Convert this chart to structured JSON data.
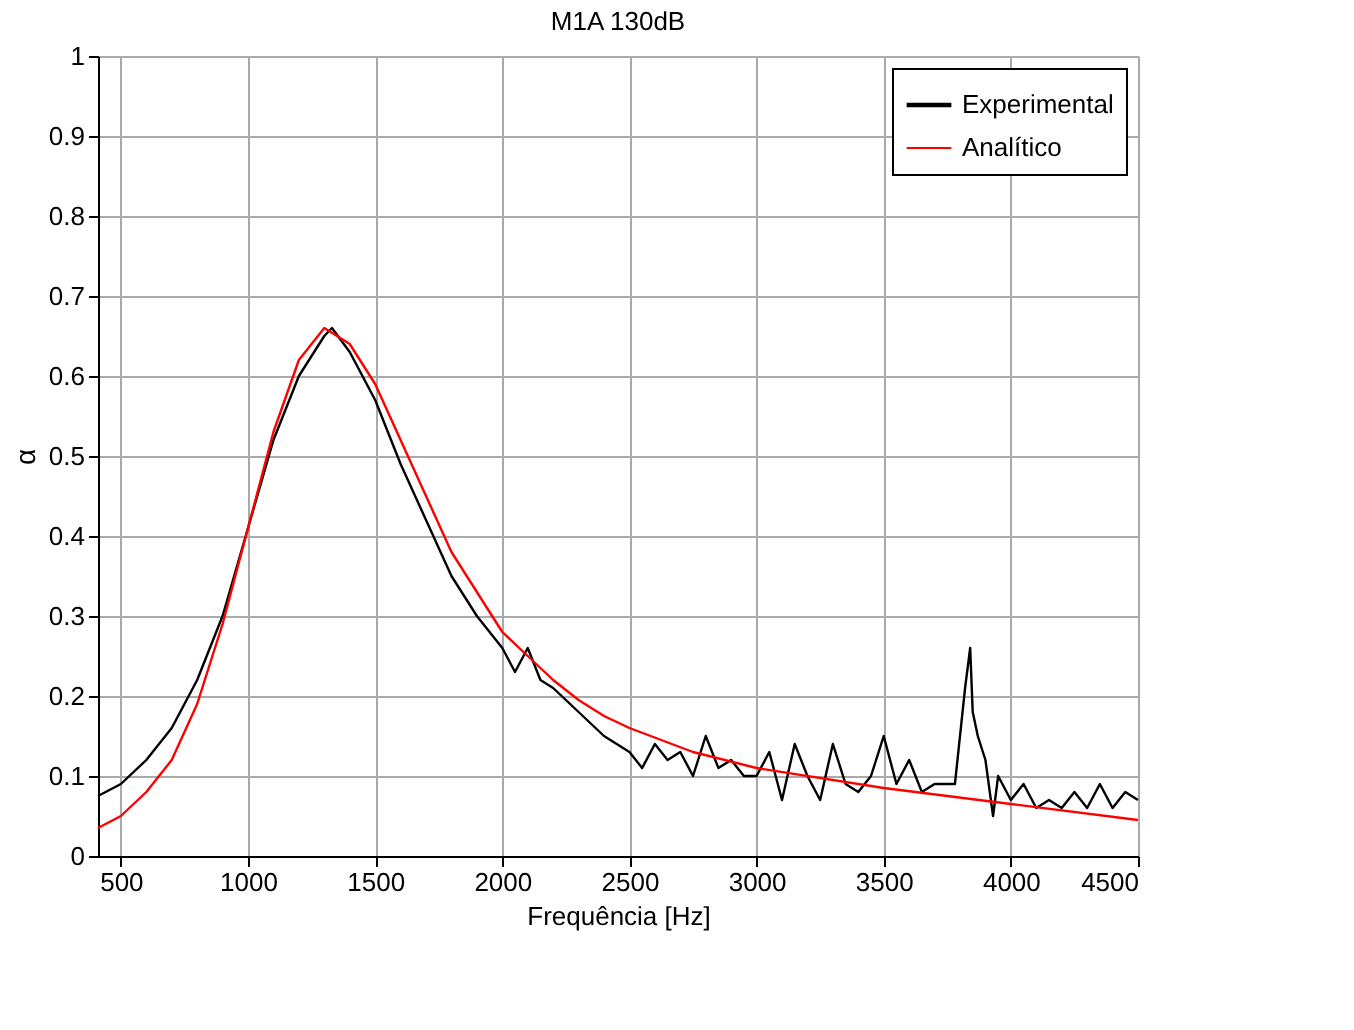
{
  "chart_data": {
    "type": "line",
    "title": "M1A 130dB",
    "xlabel": "Frequência [Hz]",
    "ylabel": "α",
    "xlim": [
      410,
      4500
    ],
    "xticks": [
      500,
      1000,
      1500,
      2000,
      2500,
      3000,
      3500,
      4000,
      4500
    ],
    "ylim": [
      0,
      1
    ],
    "yticks": [
      0,
      0.1,
      0.2,
      0.3,
      0.4,
      0.5,
      0.6,
      0.7,
      0.8,
      0.9,
      1
    ],
    "grid": true,
    "legend": "top right",
    "line_style": "solid",
    "series": [
      {
        "name": "Experimental",
        "color": "#000000",
        "x": [
          410,
          500,
          600,
          700,
          800,
          900,
          1000,
          1100,
          1200,
          1300,
          1330,
          1400,
          1500,
          1600,
          1700,
          1800,
          1900,
          2000,
          2050,
          2100,
          2150,
          2200,
          2300,
          2400,
          2500,
          2550,
          2600,
          2650,
          2700,
          2750,
          2800,
          2850,
          2900,
          2950,
          3000,
          3050,
          3100,
          3150,
          3200,
          3250,
          3300,
          3350,
          3400,
          3450,
          3500,
          3550,
          3600,
          3650,
          3700,
          3780,
          3820,
          3840,
          3850,
          3870,
          3900,
          3930,
          3950,
          4000,
          4050,
          4100,
          4150,
          4200,
          4250,
          4300,
          4350,
          4400,
          4450,
          4500
        ],
        "values": [
          0.075,
          0.09,
          0.12,
          0.16,
          0.22,
          0.3,
          0.41,
          0.52,
          0.6,
          0.65,
          0.66,
          0.63,
          0.57,
          0.49,
          0.42,
          0.35,
          0.3,
          0.26,
          0.23,
          0.26,
          0.22,
          0.21,
          0.18,
          0.15,
          0.13,
          0.11,
          0.14,
          0.12,
          0.13,
          0.1,
          0.15,
          0.11,
          0.12,
          0.1,
          0.1,
          0.13,
          0.07,
          0.14,
          0.1,
          0.07,
          0.14,
          0.09,
          0.08,
          0.1,
          0.15,
          0.09,
          0.12,
          0.08,
          0.09,
          0.09,
          0.21,
          0.26,
          0.18,
          0.15,
          0.12,
          0.05,
          0.1,
          0.07,
          0.09,
          0.06,
          0.07,
          0.06,
          0.08,
          0.06,
          0.09,
          0.06,
          0.08,
          0.07
        ]
      },
      {
        "name": "Analítico",
        "color": "#ff0000",
        "x": [
          410,
          500,
          600,
          700,
          800,
          900,
          1000,
          1100,
          1200,
          1300,
          1400,
          1500,
          1600,
          1700,
          1800,
          1900,
          2000,
          2100,
          2200,
          2300,
          2400,
          2500,
          2750,
          3000,
          3500,
          4000,
          4500
        ],
        "values": [
          0.035,
          0.05,
          0.08,
          0.12,
          0.19,
          0.29,
          0.41,
          0.53,
          0.62,
          0.66,
          0.64,
          0.59,
          0.52,
          0.45,
          0.38,
          0.33,
          0.28,
          0.25,
          0.22,
          0.195,
          0.175,
          0.16,
          0.13,
          0.11,
          0.085,
          0.065,
          0.045
        ]
      }
    ]
  }
}
